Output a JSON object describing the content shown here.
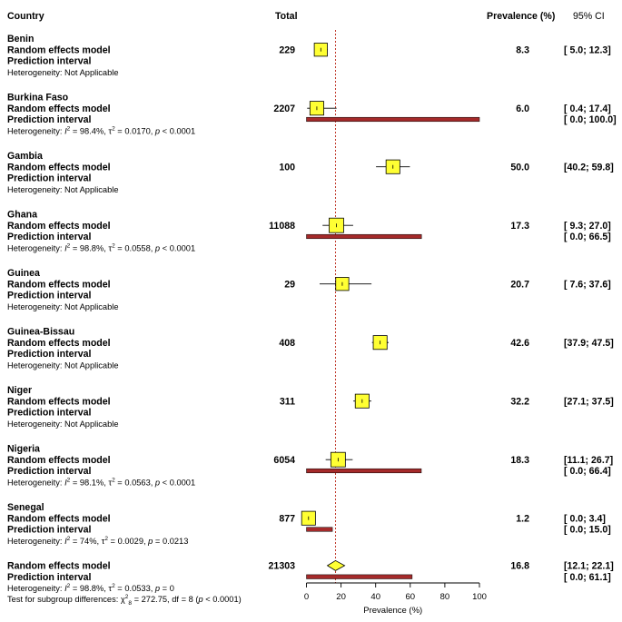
{
  "chart_data": {
    "type": "forest",
    "headers": {
      "study": "Country",
      "total": "Total",
      "prevalence": "Prevalence (%)",
      "ci": "95% CI"
    },
    "xlabel": "Prevalence (%)",
    "xlim": [
      0,
      100
    ],
    "xticks": [
      "0",
      "20",
      "40",
      "60",
      "80",
      "100"
    ],
    "reference_line": 16.8,
    "labels": {
      "random_model": "Random effects model",
      "prediction_interval": "Prediction interval"
    },
    "subgroups": [
      {
        "name": "Benin",
        "total": "229",
        "estimate": 8.3,
        "ci": [
          5.0,
          12.3
        ],
        "est_text": "8.3",
        "ci_text": "[ 5.0; 12.3]",
        "pi": null,
        "pi_text": "",
        "weight": 0.9,
        "heterogeneity": {
          "prefix": "Heterogeneity: Not Applicable",
          "i2": "",
          "tau2": "",
          "p": ""
        }
      },
      {
        "name": "Burkina Faso",
        "total": "2207",
        "estimate": 6.0,
        "ci": [
          0.4,
          17.4
        ],
        "est_text": "6.0",
        "ci_text": "[ 0.4; 17.4]",
        "pi": [
          0.0,
          100.0
        ],
        "pi_text": "[ 0.0; 100.0]",
        "weight": 0.95,
        "heterogeneity": {
          "prefix": "Heterogeneity: ",
          "i2": " = 98.4%, ",
          "tau2": " = 0.0170, ",
          "p": " < 0.0001"
        }
      },
      {
        "name": "Gambia",
        "total": "100",
        "estimate": 50.0,
        "ci": [
          40.2,
          59.8
        ],
        "est_text": "50.0",
        "ci_text": "[40.2; 59.8]",
        "pi": null,
        "pi_text": "",
        "weight": 0.95,
        "heterogeneity": {
          "prefix": "Heterogeneity: Not Applicable",
          "i2": "",
          "tau2": "",
          "p": ""
        }
      },
      {
        "name": "Ghana",
        "total": "11088",
        "estimate": 17.3,
        "ci": [
          9.3,
          27.0
        ],
        "est_text": "17.3",
        "ci_text": "[ 9.3; 27.0]",
        "pi": [
          0.0,
          66.5
        ],
        "pi_text": "[ 0.0; 66.5]",
        "weight": 1.0,
        "heterogeneity": {
          "prefix": "Heterogeneity: ",
          "i2": " = 98.8%, ",
          "tau2": " = 0.0558, ",
          "p": " < 0.0001"
        }
      },
      {
        "name": "Guinea",
        "total": "29",
        "estimate": 20.7,
        "ci": [
          7.6,
          37.6
        ],
        "est_text": "20.7",
        "ci_text": "[ 7.6; 37.6]",
        "pi": null,
        "pi_text": "",
        "weight": 0.9,
        "heterogeneity": {
          "prefix": "Heterogeneity: Not Applicable",
          "i2": "",
          "tau2": "",
          "p": ""
        }
      },
      {
        "name": "Guinea-Bissau",
        "total": "408",
        "estimate": 42.6,
        "ci": [
          37.9,
          47.5
        ],
        "est_text": "42.6",
        "ci_text": "[37.9; 47.5]",
        "pi": null,
        "pi_text": "",
        "weight": 0.95,
        "heterogeneity": {
          "prefix": "Heterogeneity: Not Applicable",
          "i2": "",
          "tau2": "",
          "p": ""
        }
      },
      {
        "name": "Niger",
        "total": "311",
        "estimate": 32.2,
        "ci": [
          27.1,
          37.5
        ],
        "est_text": "32.2",
        "ci_text": "[27.1; 37.5]",
        "pi": null,
        "pi_text": "",
        "weight": 0.95,
        "heterogeneity": {
          "prefix": "Heterogeneity: Not Applicable",
          "i2": "",
          "tau2": "",
          "p": ""
        }
      },
      {
        "name": "Nigeria",
        "total": "6054",
        "estimate": 18.3,
        "ci": [
          11.1,
          26.7
        ],
        "est_text": "18.3",
        "ci_text": "[11.1; 26.7]",
        "pi": [
          0.0,
          66.4
        ],
        "pi_text": "[ 0.0; 66.4]",
        "weight": 1.0,
        "heterogeneity": {
          "prefix": "Heterogeneity: ",
          "i2": " = 98.1%, ",
          "tau2": " = 0.0563, ",
          "p": " < 0.0001"
        }
      },
      {
        "name": "Senegal",
        "total": "877",
        "estimate": 1.2,
        "ci": [
          0.0,
          3.4
        ],
        "est_text": "1.2",
        "ci_text": "[ 0.0;  3.4]",
        "pi": [
          0.0,
          15.0
        ],
        "pi_text": "[ 0.0; 15.0]",
        "weight": 0.95,
        "heterogeneity": {
          "prefix": "Heterogeneity: ",
          "i2": " = 74%, ",
          "tau2": " = 0.0029, ",
          "p": " = 0.0213"
        }
      }
    ],
    "overall": {
      "total": "21303",
      "estimate": 16.8,
      "ci": [
        12.1,
        22.1
      ],
      "est_text": "16.8",
      "ci_text": "[12.1; 22.1]",
      "pi": [
        0.0,
        61.1
      ],
      "pi_text": "[ 0.0; 61.1]",
      "heterogeneity": {
        "prefix": "Heterogeneity: ",
        "i2": " = 98.8%, ",
        "tau2": " = 0.0533, ",
        "p": " = 0"
      },
      "subgroup_test": {
        "prefix": "Test for subgroup differences: ",
        "chi": " = 272.75, df = 8 (",
        "p": " < 0.0001)"
      }
    },
    "colors": {
      "box_fill": "#ffff33",
      "diamond_fill": "#ffff33",
      "pi_bar": "#a52a2a",
      "reference_line": "#c0392b"
    }
  }
}
